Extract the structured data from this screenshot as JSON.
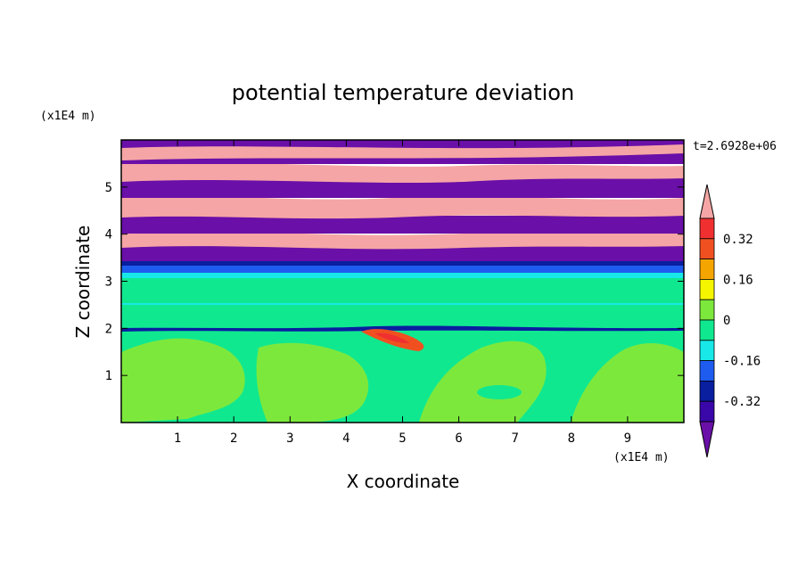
{
  "chart_data": {
    "type": "heatmap",
    "title": "potential temperature deviation",
    "xlabel": "X coordinate",
    "ylabel": "Z coordinate",
    "x_unit": "(x1E4 m)",
    "y_unit": "(x1E4 m)",
    "time_label": "t=2.6928e+06",
    "xlim": [
      0,
      10
    ],
    "ylim": [
      0,
      6
    ],
    "x_ticks": [
      "1",
      "2",
      "3",
      "4",
      "5",
      "6",
      "7",
      "8",
      "9"
    ],
    "y_ticks": [
      "1",
      "2",
      "3",
      "4",
      "5"
    ],
    "grid": false,
    "legend": "right colorbar",
    "colorbar": {
      "levels": [
        -0.4,
        -0.32,
        -0.24,
        -0.16,
        -0.08,
        0,
        0.08,
        0.16,
        0.24,
        0.32,
        0.4
      ],
      "labels": [
        "0.32",
        "0.16",
        "0",
        "-0.16",
        "-0.32"
      ],
      "colors": [
        "#6a0fa8",
        "#3a07a8",
        "#0a1ea0",
        "#1e5cf0",
        "#18e8e8",
        "#10e890",
        "#7de83c",
        "#f5f500",
        "#f5a500",
        "#f05020",
        "#f03030",
        "#f5a5a5"
      ]
    },
    "regions": [
      {
        "z_range": [
          0,
          1.9
        ],
        "dominant_values": [
          0,
          0.04
        ],
        "description": "green/yellow-green mixed field"
      },
      {
        "z_range": [
          1.9,
          2.1
        ],
        "dominant_values": [
          -0.32,
          0.3
        ],
        "description": "thin dark-blue band with warm anomaly near x=4.5"
      },
      {
        "z_range": [
          2.1,
          3.1
        ],
        "dominant_values": [
          -0.04
        ],
        "description": "uniform green layer"
      },
      {
        "z_range": [
          3.1,
          3.5
        ],
        "dominant_values": [
          -0.24
        ],
        "description": "blue band"
      },
      {
        "z_range": [
          3.5,
          6.0
        ],
        "dominant_values": [
          -0.4,
          0.4
        ],
        "description": "alternating purple and pink strata"
      }
    ]
  }
}
